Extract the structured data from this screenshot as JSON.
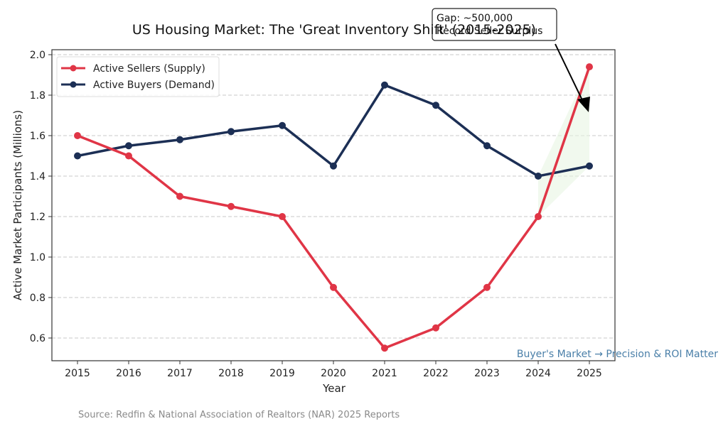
{
  "chart_data": {
    "type": "line",
    "title": "US Housing Market: The 'Great Inventory Shift' (2015-2025)",
    "xlabel": "Year",
    "ylabel": "Active Market Participants (Millions)",
    "x": [
      2015,
      2016,
      2017,
      2018,
      2019,
      2020,
      2021,
      2022,
      2023,
      2024,
      2025
    ],
    "x_tick_labels": [
      "2015",
      "2016",
      "2017",
      "2018",
      "2019",
      "2020",
      "2021",
      "2022",
      "2023",
      "2024",
      "2025"
    ],
    "ylim": [
      0.48,
      2.02
    ],
    "y_ticks": [
      0.6,
      0.8,
      1.0,
      1.2,
      1.4,
      1.6,
      1.8,
      2.0
    ],
    "y_tick_labels": [
      "0.6",
      "0.8",
      "1.0",
      "1.2",
      "1.4",
      "1.6",
      "1.8",
      "2.0"
    ],
    "grid": "horizontal-dashed",
    "legend_position": "top-left",
    "series": [
      {
        "name": "Active Sellers (Supply)",
        "color": "#e03546",
        "values": [
          1.6,
          1.5,
          1.3,
          1.25,
          1.2,
          0.85,
          0.55,
          0.65,
          0.85,
          1.2,
          1.94
        ]
      },
      {
        "name": "Active Buyers (Demand)",
        "color": "#1c2f55",
        "values": [
          1.5,
          1.55,
          1.58,
          1.62,
          1.65,
          1.45,
          1.85,
          1.75,
          1.55,
          1.4,
          1.45
        ]
      }
    ],
    "shaded_region": {
      "description": "Sellers exceed buyers",
      "x_range": [
        2024,
        2025
      ],
      "color": "#e8f5e2"
    },
    "annotations": [
      {
        "text_lines": [
          "Gap: ~500,000",
          "Record Seller Surplus"
        ],
        "points_to": {
          "x": 2025,
          "y": 1.7
        }
      },
      {
        "text": "Buyer's Market → Precision & ROI Matter",
        "color": "#4a7fa8",
        "position": "bottom-right"
      }
    ],
    "source": "Source: Redfin & National Association of Realtors (NAR) 2025 Reports"
  }
}
